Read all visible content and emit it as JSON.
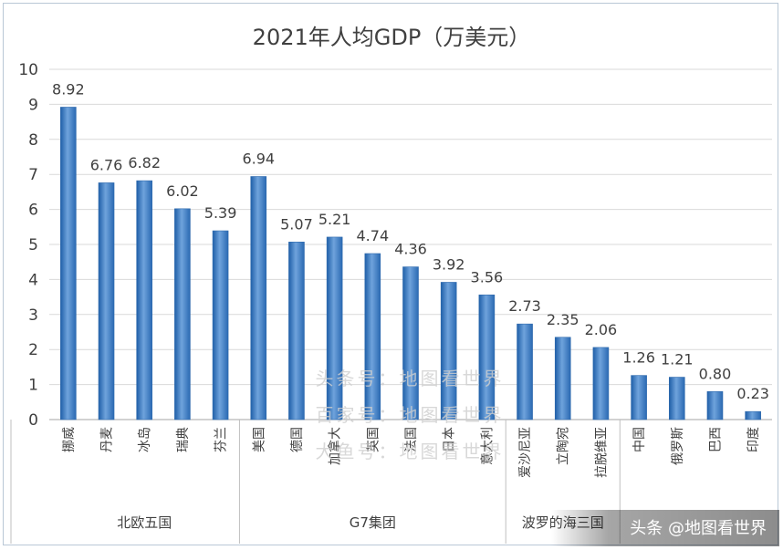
{
  "chart_data": {
    "type": "bar",
    "title": "2021年人均GDP（万美元）",
    "xlabel": "",
    "ylabel": "",
    "ylim": [
      0,
      10
    ],
    "yticks": [
      0,
      1,
      2,
      3,
      4,
      5,
      6,
      7,
      8,
      9,
      10
    ],
    "grid": true,
    "legend": "none",
    "categories": [
      "挪威",
      "丹麦",
      "冰岛",
      "瑞典",
      "芬兰",
      "美国",
      "德国",
      "加拿大",
      "英国",
      "法国",
      "日本",
      "意大利",
      "爱沙尼亚",
      "立陶宛",
      "拉脱维亚",
      "中国",
      "俄罗斯",
      "巴西",
      "印度"
    ],
    "values": [
      8.92,
      6.76,
      6.82,
      6.02,
      5.39,
      6.94,
      5.07,
      5.21,
      4.74,
      4.36,
      3.92,
      3.56,
      2.73,
      2.35,
      2.06,
      1.26,
      1.21,
      0.8,
      0.23
    ],
    "value_labels": [
      "8.92",
      "6.76",
      "6.82",
      "6.02",
      "5.39",
      "6.94",
      "5.07",
      "5.21",
      "4.74",
      "4.36",
      "3.92",
      "3.56",
      "2.73",
      "2.35",
      "2.06",
      "1.26",
      "1.21",
      "0.80",
      "0.23"
    ],
    "groups": [
      {
        "label": "北欧五国",
        "start": 0,
        "end": 4
      },
      {
        "label": "G7集团",
        "start": 5,
        "end": 11
      },
      {
        "label": "波罗的海三国",
        "start": 12,
        "end": 14
      },
      {
        "label": "",
        "start": 15,
        "end": 18
      }
    ],
    "bar_color": "#3d7cc4"
  },
  "watermark": [
    "头条号：地图看世界",
    "百家号：地图看世界",
    "大鱼号：地图看世界"
  ],
  "credit": "头条 @地图看世界"
}
